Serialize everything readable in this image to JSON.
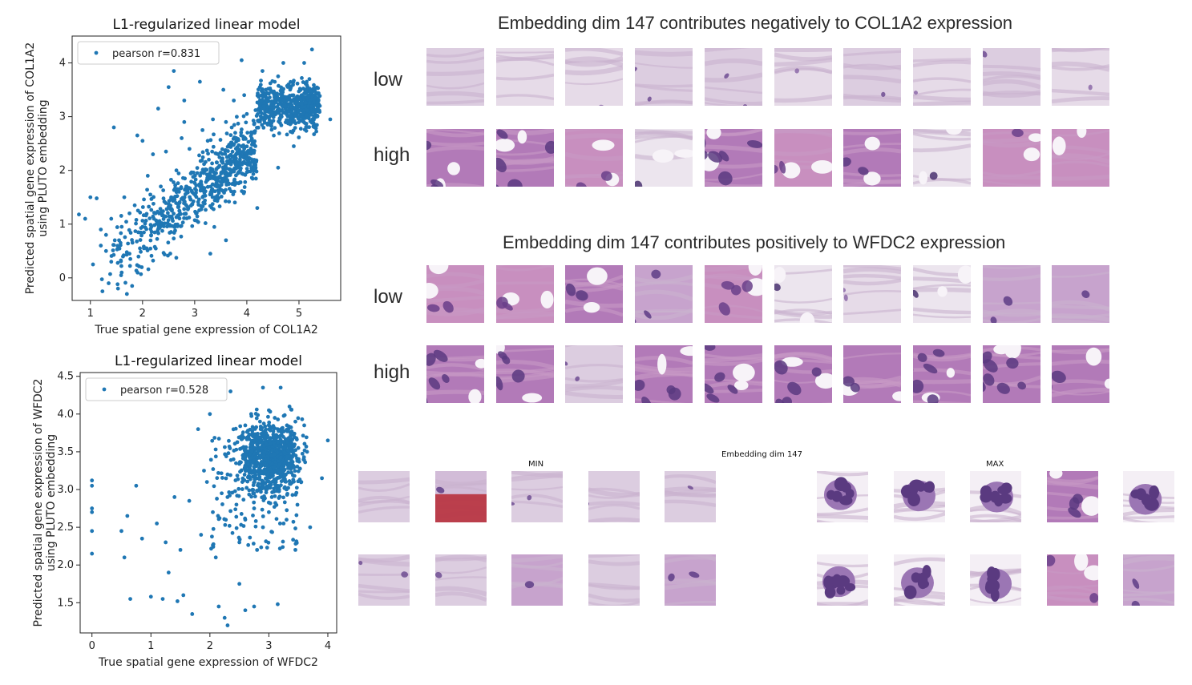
{
  "chart_data": [
    {
      "type": "scatter",
      "title": "L1-regularized linear model",
      "xlabel": "True spatial gene expression of COL1A2",
      "ylabel_line1": "Predicted spatial gene expression of COL1A2",
      "ylabel_line2": "using PLUTO embedding",
      "legend": "pearson r=0.831",
      "legend_position": "top-left",
      "color": "#1f77b4",
      "xlim": [
        0.65,
        5.8
      ],
      "ylim": [
        -0.42,
        4.5
      ],
      "xticks": [
        1,
        2,
        3,
        4,
        5
      ],
      "yticks": [
        0,
        1,
        2,
        3,
        4
      ],
      "grid": false,
      "points": [
        [
          0.78,
          1.18
        ],
        [
          0.9,
          1.1
        ],
        [
          1.0,
          1.5
        ],
        [
          1.05,
          0.25
        ],
        [
          1.12,
          1.48
        ],
        [
          1.2,
          0.9
        ],
        [
          1.3,
          0.5
        ],
        [
          1.35,
          -0.1
        ],
        [
          1.4,
          0.3
        ],
        [
          1.55,
          0.7
        ],
        [
          1.6,
          0.1
        ],
        [
          1.7,
          -0.3
        ],
        [
          1.75,
          0.45
        ],
        [
          1.8,
          -0.15
        ],
        [
          1.45,
          2.8
        ],
        [
          1.9,
          2.65
        ],
        [
          2.0,
          2.55
        ],
        [
          2.2,
          2.3
        ],
        [
          2.3,
          3.15
        ],
        [
          2.5,
          3.55
        ],
        [
          2.8,
          3.3
        ],
        [
          3.3,
          0.45
        ],
        [
          3.6,
          0.7
        ],
        [
          3.95,
          1.6
        ],
        [
          4.2,
          1.3
        ],
        [
          4.6,
          2.05
        ],
        [
          4.9,
          2.45
        ],
        [
          5.25,
          4.25
        ],
        [
          5.6,
          2.95
        ],
        [
          5.4,
          3.2
        ],
        [
          5.1,
          4.0
        ],
        [
          3.9,
          4.05
        ],
        [
          3.1,
          3.65
        ],
        [
          2.6,
          3.85
        ],
        [
          4.7,
          4.0
        ],
        [
          4.3,
          3.85
        ],
        [
          1.2,
          0.6
        ],
        [
          1.4,
          1.1
        ],
        [
          1.65,
          1.5
        ],
        [
          2.1,
          1.9
        ],
        [
          2.35,
          1.7
        ],
        [
          2.0,
          0.95
        ],
        [
          2.25,
          1.2
        ],
        [
          2.65,
          2.0
        ],
        [
          2.9,
          2.4
        ],
        [
          3.05,
          1.95
        ],
        [
          3.25,
          2.55
        ],
        [
          3.45,
          2.3
        ],
        [
          3.6,
          2.9
        ],
        [
          3.8,
          2.6
        ],
        [
          4.0,
          3.05
        ],
        [
          4.15,
          2.7
        ],
        [
          4.35,
          3.1
        ],
        [
          4.5,
          3.45
        ],
        [
          4.65,
          3.25
        ],
        [
          4.8,
          3.6
        ],
        [
          4.95,
          3.05
        ],
        [
          5.05,
          3.4
        ],
        [
          5.2,
          3.7
        ],
        [
          5.3,
          3.1
        ],
        [
          4.45,
          2.85
        ],
        [
          3.75,
          3.3
        ],
        [
          3.55,
          3.5
        ],
        [
          3.35,
          2.95
        ],
        [
          3.15,
          2.75
        ],
        [
          2.75,
          2.6
        ],
        [
          2.55,
          1.5
        ],
        [
          2.45,
          2.35
        ],
        [
          1.95,
          0.55
        ],
        [
          1.85,
          1.35
        ],
        [
          1.6,
          0.95
        ],
        [
          1.3,
          0.8
        ],
        [
          1.75,
          1.2
        ],
        [
          2.15,
          1.55
        ],
        [
          2.8,
          2.9
        ],
        [
          4.25,
          3.55
        ],
        [
          4.85,
          2.9
        ],
        [
          5.15,
          3.0
        ],
        [
          4.6,
          3.75
        ],
        [
          3.95,
          3.4
        ]
      ]
    },
    {
      "type": "scatter",
      "title": "L1-regularized linear model",
      "xlabel": "True spatial gene expression of WFDC2",
      "ylabel_line1": "Predicted spatial gene expression of WFDC2",
      "ylabel_line2": "using PLUTO embedding",
      "legend": "pearson r=0.528",
      "legend_position": "top-left",
      "color": "#1f77b4",
      "xlim": [
        -0.2,
        4.15
      ],
      "ylim": [
        1.1,
        4.55
      ],
      "xticks": [
        0,
        1,
        2,
        3,
        4
      ],
      "yticks": [
        1.5,
        2.0,
        2.5,
        3.0,
        3.5,
        4.0,
        4.5
      ],
      "grid": false,
      "points": [
        [
          0.0,
          3.12
        ],
        [
          0.0,
          3.05
        ],
        [
          0.0,
          2.75
        ],
        [
          0.0,
          2.7
        ],
        [
          0.0,
          2.45
        ],
        [
          0.0,
          2.15
        ],
        [
          0.5,
          2.45
        ],
        [
          0.55,
          2.1
        ],
        [
          0.6,
          2.65
        ],
        [
          0.65,
          1.55
        ],
        [
          0.75,
          3.05
        ],
        [
          0.85,
          2.35
        ],
        [
          1.0,
          1.58
        ],
        [
          1.1,
          2.55
        ],
        [
          1.2,
          1.55
        ],
        [
          1.3,
          1.9
        ],
        [
          1.45,
          1.52
        ],
        [
          1.5,
          2.2
        ],
        [
          1.55,
          1.6
        ],
        [
          1.7,
          1.35
        ],
        [
          1.8,
          3.8
        ],
        [
          1.9,
          3.25
        ],
        [
          2.0,
          4.0
        ],
        [
          2.1,
          2.1
        ],
        [
          2.15,
          1.45
        ],
        [
          2.25,
          1.3
        ],
        [
          2.3,
          1.2
        ],
        [
          2.35,
          4.3
        ],
        [
          2.5,
          1.75
        ],
        [
          2.6,
          1.4
        ],
        [
          2.75,
          1.45
        ],
        [
          3.15,
          1.48
        ],
        [
          3.3,
          2.6
        ],
        [
          3.45,
          2.2
        ],
        [
          3.7,
          2.5
        ],
        [
          3.9,
          3.15
        ],
        [
          4.0,
          3.65
        ],
        [
          2.9,
          4.35
        ],
        [
          3.2,
          4.35
        ],
        [
          2.55,
          3.1
        ],
        [
          2.65,
          3.5
        ],
        [
          2.7,
          3.25
        ],
        [
          2.8,
          3.6
        ],
        [
          2.85,
          3.0
        ],
        [
          2.95,
          3.75
        ],
        [
          3.0,
          3.35
        ],
        [
          3.05,
          2.9
        ],
        [
          3.1,
          3.55
        ],
        [
          3.15,
          3.8
        ],
        [
          3.2,
          3.2
        ],
        [
          3.25,
          3.45
        ],
        [
          3.3,
          3.0
        ],
        [
          3.35,
          3.65
        ],
        [
          3.4,
          3.3
        ],
        [
          3.5,
          3.55
        ],
        [
          3.55,
          3.1
        ],
        [
          3.6,
          3.85
        ],
        [
          2.45,
          2.8
        ],
        [
          2.6,
          2.6
        ],
        [
          2.75,
          2.75
        ],
        [
          2.9,
          2.5
        ],
        [
          3.0,
          4.05
        ],
        [
          3.1,
          3.95
        ],
        [
          2.85,
          3.9
        ],
        [
          2.7,
          4.0
        ],
        [
          2.6,
          3.85
        ],
        [
          3.35,
          4.1
        ],
        [
          3.45,
          3.9
        ],
        [
          2.4,
          3.4
        ],
        [
          2.3,
          3.2
        ],
        [
          2.2,
          2.95
        ],
        [
          2.05,
          2.7
        ],
        [
          1.95,
          3.1
        ],
        [
          1.85,
          2.4
        ],
        [
          1.65,
          2.85
        ],
        [
          1.4,
          2.9
        ],
        [
          1.25,
          2.3
        ],
        [
          2.5,
          2.3
        ],
        [
          2.8,
          2.2
        ],
        [
          3.0,
          2.7
        ],
        [
          3.25,
          2.55
        ],
        [
          2.95,
          3.15
        ],
        [
          3.15,
          3.0
        ],
        [
          2.65,
          3.7
        ],
        [
          3.05,
          3.45
        ],
        [
          2.75,
          3.35
        ]
      ]
    }
  ],
  "panel1": {
    "title": "Embedding dim 147 contributes negatively to COL1A2 expression",
    "low_label": "low",
    "high_label": "high"
  },
  "panel2": {
    "title": "Embedding dim 147 contributes positively to WFDC2 expression",
    "low_label": "low",
    "high_label": "high"
  },
  "panel3": {
    "title": "Embedding dim 147",
    "min_label": "MIN",
    "max_label": "MAX"
  },
  "colors": {
    "stroma_light": "#d8c6dc",
    "stroma_pink": "#c9a3c8",
    "nuclei_dark": "#5b3a7e",
    "nuclei_mid": "#8a5aa3",
    "blood_red": "#b8313d",
    "background": "#ffffff"
  }
}
